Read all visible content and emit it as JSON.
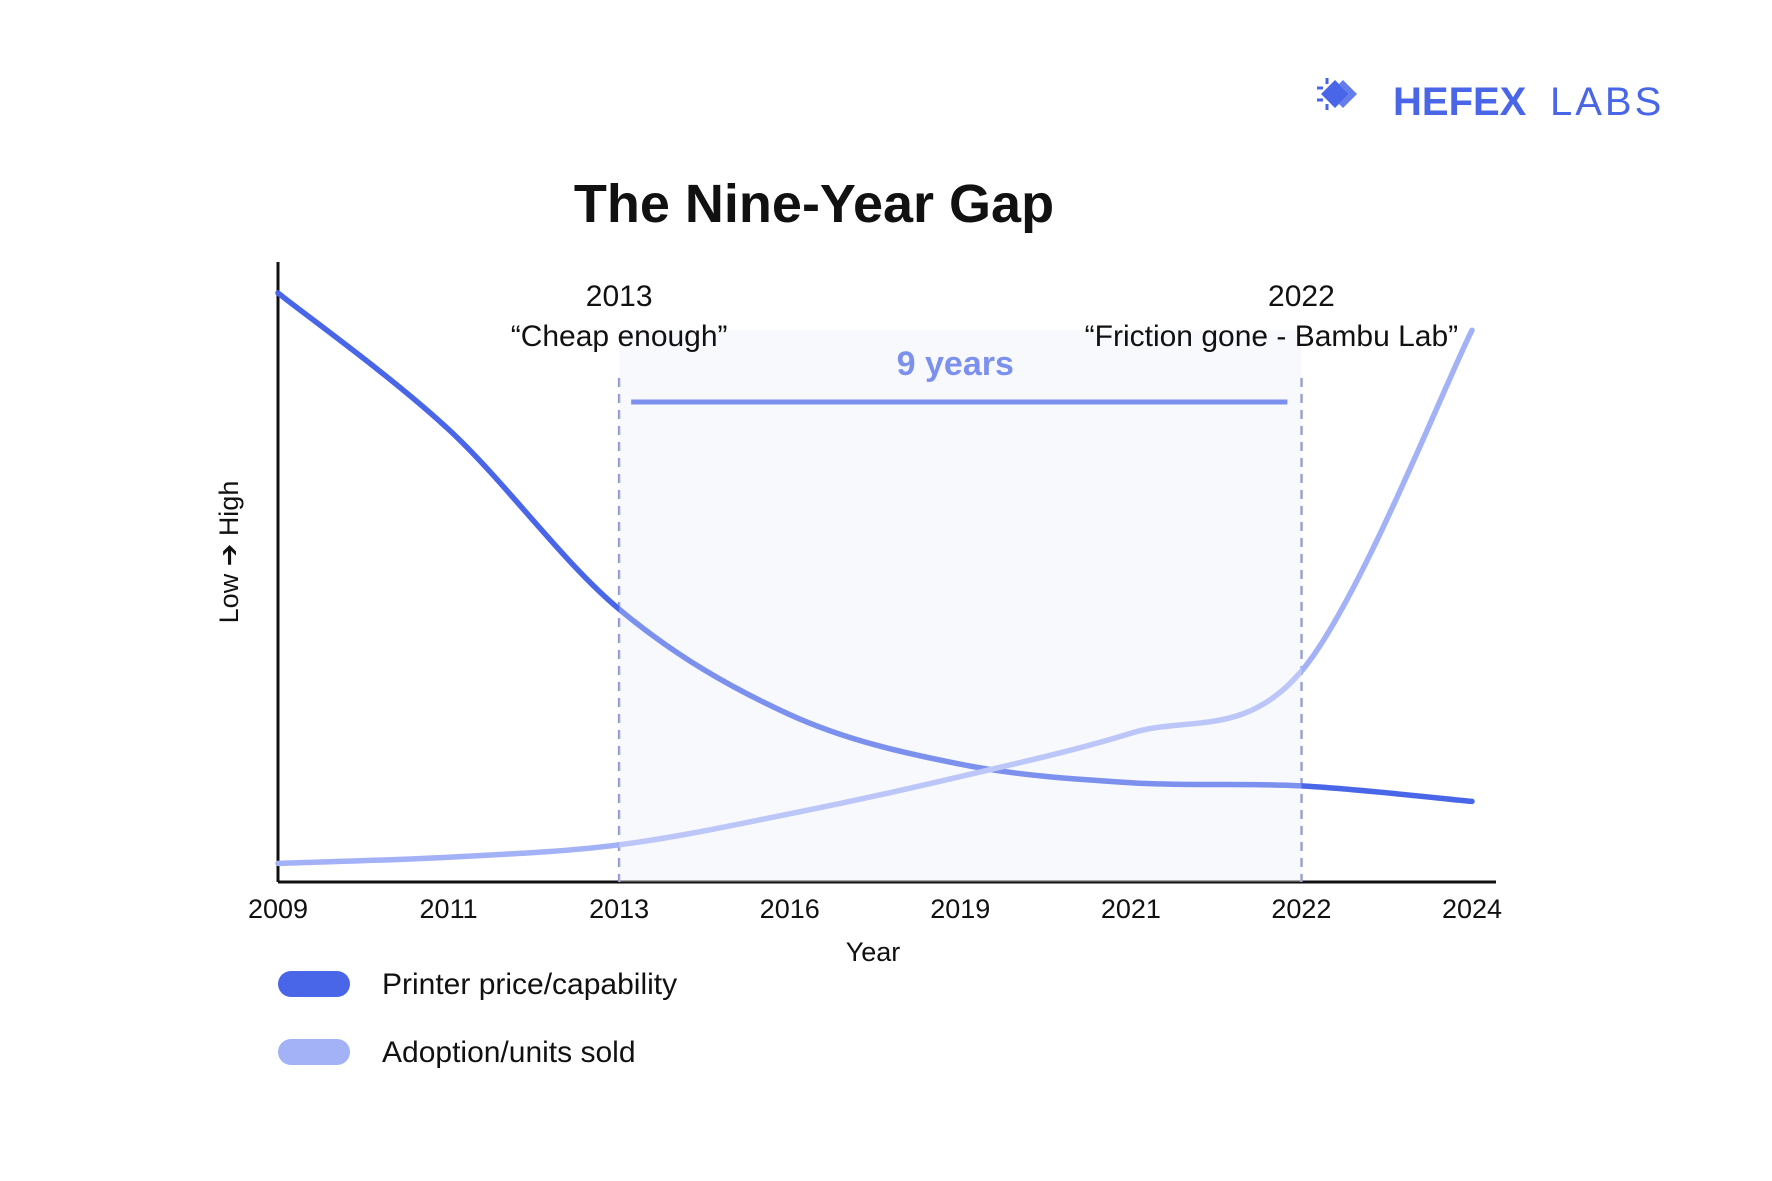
{
  "brand": {
    "name_bold": "HEFEX",
    "name_light": "LABS",
    "icon": "chip-icon"
  },
  "colors": {
    "accent": "#4A66E8",
    "series_price": "#4A66E8",
    "series_adoption": "#A3B1F7",
    "gap_fill": "#F5F7FD",
    "guide_line": "#8A96C9",
    "axis": "#111111"
  },
  "chart_data": {
    "type": "line",
    "title": "The Nine-Year Gap",
    "xlabel": "Year",
    "ylabel": "Low ➔ High",
    "categories": [
      "2009",
      "2011",
      "2013",
      "2016",
      "2019",
      "2021",
      "2022",
      "2024"
    ],
    "ylim": [
      0,
      100
    ],
    "grid": false,
    "legend_position": "bottom-left",
    "series": [
      {
        "name": "Printer price/capability",
        "values": [
          95,
          73,
          44,
          27,
          19,
          16,
          15.5,
          13
        ]
      },
      {
        "name": "Adoption/units sold",
        "values": [
          3,
          4,
          6,
          11,
          17,
          24,
          34,
          89
        ]
      }
    ],
    "annotations": [
      {
        "year": "2013",
        "text": "“Cheap enough”"
      },
      {
        "year": "2022",
        "text": "“Friction gone -  Bambu Lab”"
      }
    ],
    "gap_label": "9 years"
  }
}
